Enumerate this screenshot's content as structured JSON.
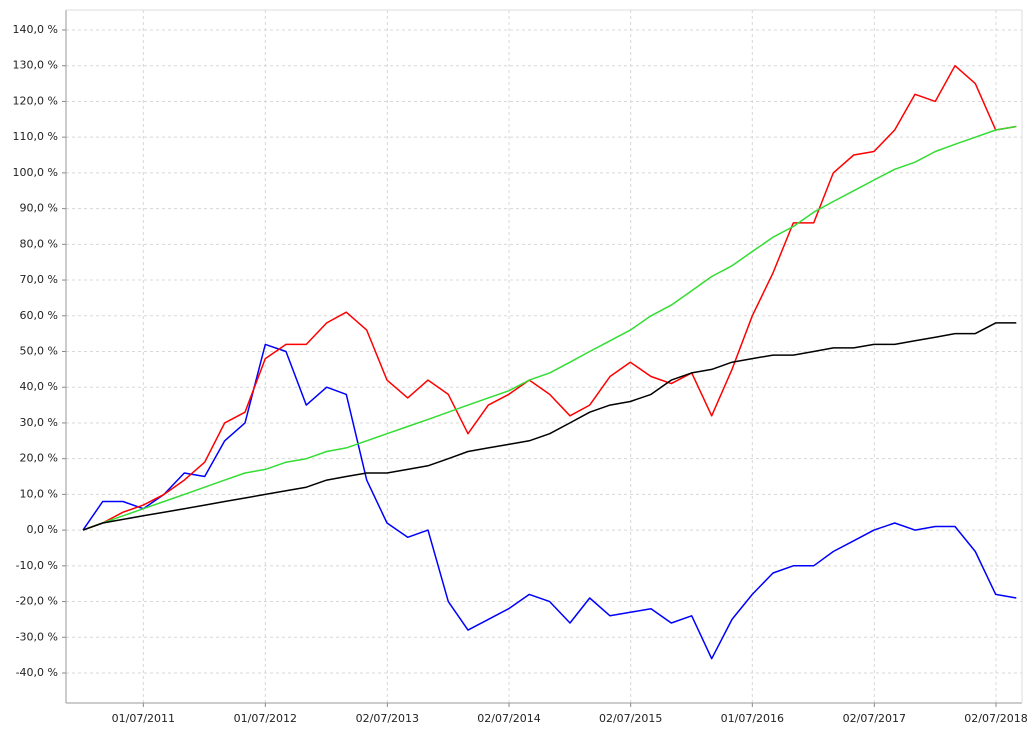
{
  "chart_data": {
    "type": "line",
    "x": [
      "01/01/2011",
      "01/03/2011",
      "01/05/2011",
      "01/07/2011",
      "01/09/2011",
      "01/11/2011",
      "01/01/2012",
      "01/03/2012",
      "01/05/2012",
      "01/07/2012",
      "01/09/2012",
      "01/11/2012",
      "01/01/2013",
      "01/03/2013",
      "01/05/2013",
      "01/07/2013",
      "01/09/2013",
      "01/11/2013",
      "01/01/2014",
      "01/03/2014",
      "01/05/2014",
      "01/07/2014",
      "01/09/2014",
      "01/11/2014",
      "01/01/2015",
      "01/03/2015",
      "01/05/2015",
      "01/07/2015",
      "01/09/2015",
      "01/11/2015",
      "01/01/2016",
      "01/03/2016",
      "01/05/2016",
      "01/07/2016",
      "01/09/2016",
      "01/11/2016",
      "01/01/2017",
      "01/03/2017",
      "01/05/2017",
      "01/07/2017",
      "01/09/2017",
      "01/11/2017",
      "01/01/2018",
      "01/03/2018",
      "01/05/2018",
      "01/07/2018",
      "01/09/2018"
    ],
    "series": [
      {
        "color": "#0000ff",
        "values": [
          0,
          8,
          8,
          6,
          10,
          16,
          15,
          25,
          30,
          52,
          50,
          35,
          40,
          38,
          14,
          2,
          -2,
          0,
          -20,
          -28,
          -25,
          -22,
          -18,
          -20,
          -26,
          -19,
          -24,
          -23,
          -22,
          -26,
          -24,
          -36,
          -25,
          -18,
          -12,
          -10,
          -10,
          -6,
          -3,
          0,
          2,
          0,
          1,
          1,
          -6,
          -18,
          -19
        ]
      },
      {
        "color": "#ff0000",
        "values": [
          0,
          2,
          5,
          7,
          10,
          14,
          19,
          30,
          33,
          48,
          52,
          52,
          58,
          61,
          56,
          42,
          37,
          42,
          38,
          27,
          35,
          38,
          42,
          38,
          32,
          35,
          43,
          47,
          43,
          41,
          44,
          32,
          45,
          60,
          72,
          86,
          86,
          100,
          105,
          106,
          112,
          122,
          120,
          130,
          125,
          112,
          113
        ]
      },
      {
        "color": "#33dd33",
        "values": [
          0,
          2,
          4,
          6,
          8,
          10,
          12,
          14,
          16,
          17,
          19,
          20,
          22,
          23,
          25,
          27,
          29,
          31,
          33,
          35,
          37,
          39,
          42,
          44,
          47,
          50,
          53,
          56,
          60,
          63,
          67,
          71,
          74,
          78,
          82,
          85,
          89,
          92,
          95,
          98,
          101,
          103,
          106,
          108,
          110,
          112,
          113
        ]
      },
      {
        "color": "#000000",
        "values": [
          0,
          2,
          3,
          4,
          5,
          6,
          7,
          8,
          9,
          10,
          11,
          12,
          14,
          15,
          16,
          16,
          17,
          18,
          20,
          22,
          23,
          24,
          25,
          27,
          30,
          33,
          35,
          36,
          38,
          42,
          44,
          45,
          47,
          48,
          49,
          49,
          50,
          51,
          51,
          52,
          52,
          53,
          54,
          55,
          55,
          58,
          58
        ]
      }
    ],
    "xlim": [
      "11/11/2010",
      "18/09/2018"
    ],
    "xticks": [
      "01/07/2011",
      "01/07/2012",
      "02/07/2013",
      "02/07/2014",
      "02/07/2015",
      "01/07/2016",
      "02/07/2017",
      "02/07/2018"
    ],
    "ylim": [
      -48.4,
      145.6
    ],
    "yticks": [
      {
        "value": -40,
        "label": "-40,0 %"
      },
      {
        "value": -30,
        "label": "-30,0 %"
      },
      {
        "value": -20,
        "label": "-20,0 %"
      },
      {
        "value": -10,
        "label": "-10,0 %"
      },
      {
        "value": 0,
        "label": "0,0 %"
      },
      {
        "value": 10,
        "label": "10,0 %"
      },
      {
        "value": 20,
        "label": "20,0 %"
      },
      {
        "value": 30,
        "label": "30,0 %"
      },
      {
        "value": 40,
        "label": "40,0 %"
      },
      {
        "value": 50,
        "label": "50,0 %"
      },
      {
        "value": 60,
        "label": "60,0 %"
      },
      {
        "value": 70,
        "label": "70,0 %"
      },
      {
        "value": 80,
        "label": "80,0 %"
      },
      {
        "value": 90,
        "label": "90,0 %"
      },
      {
        "value": 100,
        "label": "100,0 %"
      },
      {
        "value": 110,
        "label": "110,0 %"
      },
      {
        "value": 120,
        "label": "120,0 %"
      },
      {
        "value": 130,
        "label": "130,0 %"
      },
      {
        "value": 140,
        "label": "140,0 %"
      }
    ],
    "grid": true
  }
}
